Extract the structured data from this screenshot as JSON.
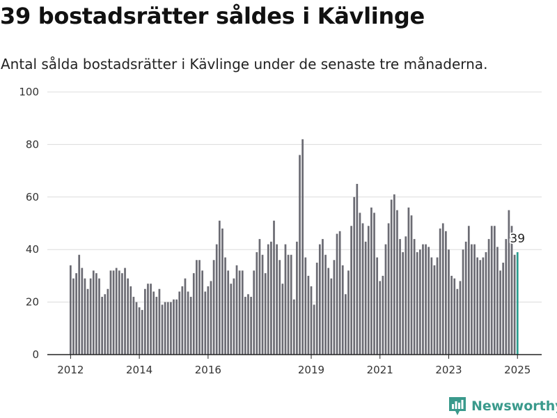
{
  "title": "39 bostadsrätter såldes i Kävlinge",
  "subtitle": "Antal sålda bostadsrätter i Kävlinge under de senaste tre månaderna.",
  "brand": {
    "name": "Newsworthy",
    "icon": "newsworthy-logo-icon",
    "color": "#3a9a8c"
  },
  "chart_data": {
    "type": "bar",
    "title": "39 bostadsrätter såldes i Kävlinge",
    "subtitle": "Antal sålda bostadsrätter i Kävlinge under de senaste tre månaderna.",
    "xlabel": "",
    "ylabel": "",
    "ylim": [
      0,
      100
    ],
    "yticks": [
      "0",
      "20",
      "40",
      "60",
      "80",
      "100"
    ],
    "xticks": [
      "2012",
      "2014",
      "2016",
      "2019",
      "2021",
      "2023",
      "2025"
    ],
    "start": "2012-01",
    "end": "2025-01",
    "grid": true,
    "bar_color": "#6b6b73",
    "highlight_color": "#2a9d8f",
    "highlight_label": "39",
    "categories": [
      "2012-01",
      "2012-02",
      "2012-03",
      "2012-04",
      "2012-05",
      "2012-06",
      "2012-07",
      "2012-08",
      "2012-09",
      "2012-10",
      "2012-11",
      "2012-12",
      "2013-01",
      "2013-02",
      "2013-03",
      "2013-04",
      "2013-05",
      "2013-06",
      "2013-07",
      "2013-08",
      "2013-09",
      "2013-10",
      "2013-11",
      "2013-12",
      "2014-01",
      "2014-02",
      "2014-03",
      "2014-04",
      "2014-05",
      "2014-06",
      "2014-07",
      "2014-08",
      "2014-09",
      "2014-10",
      "2014-11",
      "2014-12",
      "2015-01",
      "2015-02",
      "2015-03",
      "2015-04",
      "2015-05",
      "2015-06",
      "2015-07",
      "2015-08",
      "2015-09",
      "2015-10",
      "2015-11",
      "2015-12",
      "2016-01",
      "2016-02",
      "2016-03",
      "2016-04",
      "2016-05",
      "2016-06",
      "2016-07",
      "2016-08",
      "2016-09",
      "2016-10",
      "2016-11",
      "2016-12",
      "2017-01",
      "2017-02",
      "2017-03",
      "2017-04",
      "2017-05",
      "2017-06",
      "2017-07",
      "2017-08",
      "2017-09",
      "2017-10",
      "2017-11",
      "2017-12",
      "2018-01",
      "2018-02",
      "2018-03",
      "2018-04",
      "2018-05",
      "2018-06",
      "2018-07",
      "2018-08",
      "2018-09",
      "2018-10",
      "2018-11",
      "2018-12",
      "2019-01",
      "2019-02",
      "2019-03",
      "2019-04",
      "2019-05",
      "2019-06",
      "2019-07",
      "2019-08",
      "2019-09",
      "2019-10",
      "2019-11",
      "2019-12",
      "2020-01",
      "2020-02",
      "2020-03",
      "2020-04",
      "2020-05",
      "2020-06",
      "2020-07",
      "2020-08",
      "2020-09",
      "2020-10",
      "2020-11",
      "2020-12",
      "2021-01",
      "2021-02",
      "2021-03",
      "2021-04",
      "2021-05",
      "2021-06",
      "2021-07",
      "2021-08",
      "2021-09",
      "2021-10",
      "2021-11",
      "2021-12",
      "2022-01",
      "2022-02",
      "2022-03",
      "2022-04",
      "2022-05",
      "2022-06",
      "2022-07",
      "2022-08",
      "2022-09",
      "2022-10",
      "2022-11",
      "2022-12",
      "2023-01",
      "2023-02",
      "2023-03",
      "2023-04",
      "2023-05",
      "2023-06",
      "2023-07",
      "2023-08",
      "2023-09",
      "2023-10",
      "2023-11",
      "2023-12",
      "2024-01",
      "2024-02",
      "2024-03",
      "2024-04",
      "2024-05",
      "2024-06",
      "2024-07",
      "2024-08",
      "2024-09",
      "2024-10",
      "2024-11",
      "2024-12",
      "2025-01"
    ],
    "values": [
      34,
      29,
      31,
      38,
      33,
      29,
      25,
      29,
      32,
      31,
      29,
      22,
      23,
      25,
      32,
      32,
      33,
      32,
      31,
      33,
      29,
      26,
      22,
      20,
      18,
      17,
      25,
      27,
      27,
      24,
      22,
      25,
      19,
      20,
      20,
      20,
      21,
      21,
      24,
      26,
      29,
      24,
      22,
      31,
      36,
      36,
      32,
      24,
      26,
      28,
      36,
      42,
      51,
      48,
      37,
      32,
      27,
      29,
      34,
      32,
      32,
      22,
      23,
      22,
      32,
      39,
      44,
      38,
      31,
      42,
      43,
      51,
      42,
      36,
      27,
      42,
      38,
      38,
      21,
      43,
      76,
      82,
      37,
      30,
      26,
      19,
      35,
      42,
      44,
      38,
      33,
      29,
      36,
      46,
      47,
      34,
      23,
      32,
      49,
      60,
      65,
      54,
      50,
      43,
      49,
      56,
      54,
      37,
      28,
      30,
      42,
      50,
      59,
      61,
      55,
      44,
      39,
      45,
      56,
      53,
      44,
      39,
      40,
      42,
      42,
      41,
      37,
      34,
      37,
      48,
      50,
      47,
      40,
      30,
      29,
      25,
      28,
      40,
      43,
      49,
      42,
      42,
      37,
      36,
      37,
      39,
      44,
      49,
      49,
      41,
      32,
      35,
      44,
      55,
      49,
      38,
      39
    ]
  }
}
